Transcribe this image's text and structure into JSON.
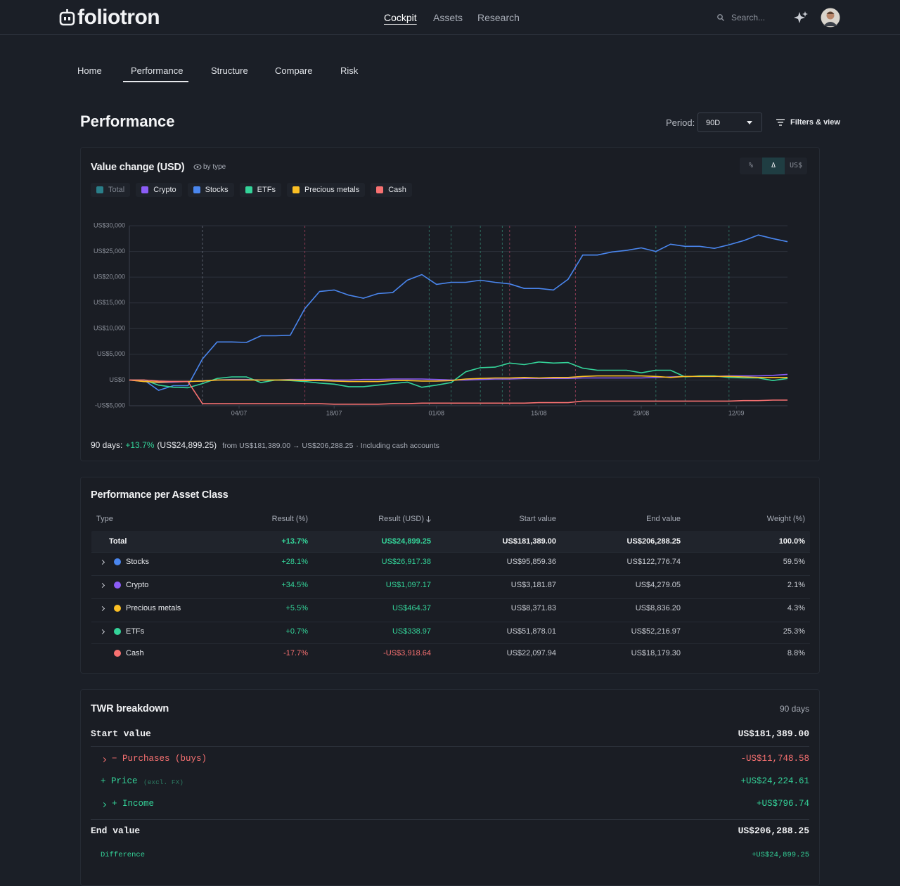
{
  "header": {
    "logo": "foliotron",
    "nav": [
      "Cockpit",
      "Assets",
      "Research"
    ],
    "active_nav": 0,
    "search": "Search..."
  },
  "tabs": {
    "items": [
      "Home",
      "Performance",
      "Structure",
      "Compare",
      "Risk"
    ],
    "active": 1
  },
  "page": {
    "title": "Performance",
    "period_label": "Period:",
    "period": "90D",
    "filters": "Filters & view"
  },
  "chart_data": {
    "type": "line",
    "title": "Value change (USD)",
    "subtitle": "by type",
    "toggles": [
      "%",
      "Δ",
      "US$"
    ],
    "active_toggle": 1,
    "inactive_legend": {
      "name": "Total",
      "color": "#2a7f8a"
    },
    "x": [
      0,
      2,
      4,
      6,
      8,
      10,
      12,
      14,
      16,
      18,
      20,
      22,
      24,
      26,
      28,
      30,
      32,
      34,
      36,
      38,
      40,
      42,
      44,
      46,
      48,
      50,
      52,
      54,
      56,
      58,
      60,
      62,
      64,
      66,
      68,
      70,
      72,
      74,
      76,
      78,
      80,
      82,
      84,
      86,
      88,
      90
    ],
    "xlim": [
      0,
      90
    ],
    "xticks": [
      {
        "value": 15,
        "label": "04/07"
      },
      {
        "value": 28,
        "label": "18/07"
      },
      {
        "value": 42,
        "label": "01/08"
      },
      {
        "value": 56,
        "label": "15/08"
      },
      {
        "value": 70,
        "label": "29/08"
      },
      {
        "value": 83,
        "label": "12/09"
      }
    ],
    "ylim": [
      -5000,
      30000
    ],
    "yticks": [
      {
        "value": -5000,
        "label": "-US$5,000"
      },
      {
        "value": 0,
        "label": "US$0"
      },
      {
        "value": 5000,
        "label": "US$5,000"
      },
      {
        "value": 10000,
        "label": "US$10,000"
      },
      {
        "value": 15000,
        "label": "US$15,000"
      },
      {
        "value": 20000,
        "label": "US$20,000"
      },
      {
        "value": 25000,
        "label": "US$25,000"
      },
      {
        "value": 30000,
        "label": "US$30,000"
      }
    ],
    "grid": true,
    "events": [
      {
        "x": 10,
        "color": "#5a606b"
      },
      {
        "x": 24,
        "color": "#8a3a52"
      },
      {
        "x": 41,
        "color": "#2d6b5e"
      },
      {
        "x": 44,
        "color": "#2d6b5e"
      },
      {
        "x": 48,
        "color": "#2d6b5e"
      },
      {
        "x": 51,
        "color": "#2d6b5e"
      },
      {
        "x": 52,
        "color": "#8a3a52"
      },
      {
        "x": 61,
        "color": "#8a3a52"
      },
      {
        "x": 72,
        "color": "#2d6b5e"
      },
      {
        "x": 76,
        "color": "#2d6b5e"
      },
      {
        "x": 82,
        "color": "#2d6b5e"
      }
    ],
    "series": [
      {
        "name": "Crypto",
        "color": "#8b5cf6",
        "values": [
          0,
          -300,
          -500,
          -400,
          -300,
          -200,
          0,
          100,
          100,
          0,
          0,
          100,
          100,
          100,
          0,
          0,
          100,
          100,
          200,
          200,
          200,
          100,
          0,
          0,
          100,
          200,
          200,
          300,
          300,
          300,
          300,
          400,
          400,
          400,
          400,
          400,
          500,
          600,
          700,
          700,
          700,
          800,
          800,
          800,
          900,
          1100
        ]
      },
      {
        "name": "Stocks",
        "color": "#4a86ee",
        "values": [
          0,
          0,
          -2000,
          -1100,
          -1100,
          4100,
          7400,
          7400,
          7300,
          8600,
          8600,
          8700,
          13900,
          17200,
          17500,
          16500,
          15900,
          16800,
          17000,
          19400,
          20500,
          18600,
          19000,
          19000,
          19400,
          19000,
          18700,
          17800,
          17800,
          17500,
          19600,
          24300,
          24300,
          24900,
          25200,
          25700,
          25000,
          26400,
          26000,
          26000,
          25600,
          26300,
          27100,
          28200,
          27500,
          26900
        ]
      },
      {
        "name": "ETFs",
        "color": "#34d399",
        "values": [
          0,
          0,
          -1000,
          -1400,
          -1500,
          -700,
          300,
          600,
          600,
          -500,
          0,
          -100,
          -300,
          -600,
          -800,
          -1300,
          -1300,
          -1000,
          -700,
          -400,
          -1400,
          -1000,
          -500,
          1600,
          2400,
          2500,
          3300,
          3000,
          3500,
          3300,
          3400,
          2300,
          1900,
          1900,
          1900,
          1400,
          1900,
          1900,
          600,
          800,
          800,
          500,
          400,
          400,
          -100,
          300
        ]
      },
      {
        "name": "Precious metals",
        "color": "#fbbf24",
        "values": [
          0,
          -300,
          -400,
          -300,
          -300,
          -200,
          0,
          0,
          0,
          0,
          0,
          0,
          -100,
          -100,
          -200,
          -300,
          -300,
          -300,
          -100,
          -100,
          -200,
          -200,
          -100,
          200,
          300,
          400,
          400,
          500,
          400,
          500,
          500,
          700,
          800,
          800,
          800,
          800,
          700,
          500,
          700,
          700,
          700,
          700,
          600,
          500,
          500,
          500
        ]
      },
      {
        "name": "Cash",
        "color": "#f87171",
        "values": [
          0,
          0,
          -200,
          -300,
          -300,
          -4600,
          -4600,
          -4600,
          -4600,
          -4600,
          -4600,
          -4600,
          -4600,
          -4600,
          -4700,
          -4700,
          -4700,
          -4700,
          -4600,
          -4600,
          -4500,
          -4500,
          -4500,
          -4500,
          -4500,
          -4500,
          -4500,
          -4500,
          -4400,
          -4400,
          -4400,
          -4100,
          -4100,
          -4100,
          -4100,
          -4100,
          -4100,
          -4100,
          -4100,
          -4100,
          -4100,
          -4100,
          -4000,
          -4000,
          -3900,
          -3900
        ]
      }
    ],
    "summary": {
      "label": "90 days:",
      "pct": "+13.7%",
      "abs": "(US$24,899.25)",
      "range": "from US$181,389.00 → US$206,288.25",
      "note": "· Including cash accounts"
    }
  },
  "table": {
    "title": "Performance per Asset Class",
    "columns": [
      "Type",
      "Result (%)",
      "Result (USD)",
      "Start value",
      "End value",
      "Weight (%)"
    ],
    "sort_column": 2,
    "total": {
      "type": "Total",
      "tone": "pos",
      "cells": [
        "+13.7%",
        "US$24,899.25",
        "US$181,389.00",
        "US$206,288.25",
        "100.0%"
      ]
    },
    "rows": [
      {
        "type": "Stocks",
        "color": "#4a86ee",
        "expandable": true,
        "tone": "pos",
        "cells": [
          "+28.1%",
          "US$26,917.38",
          "US$95,859.36",
          "US$122,776.74",
          "59.5%"
        ]
      },
      {
        "type": "Crypto",
        "color": "#8b5cf6",
        "expandable": true,
        "tone": "pos",
        "cells": [
          "+34.5%",
          "US$1,097.17",
          "US$3,181.87",
          "US$4,279.05",
          "2.1%"
        ]
      },
      {
        "type": "Precious metals",
        "color": "#fbbf24",
        "expandable": true,
        "tone": "pos",
        "cells": [
          "+5.5%",
          "US$464.37",
          "US$8,371.83",
          "US$8,836.20",
          "4.3%"
        ]
      },
      {
        "type": "ETFs",
        "color": "#34d399",
        "expandable": true,
        "tone": "pos",
        "cells": [
          "+0.7%",
          "US$338.97",
          "US$51,878.01",
          "US$52,216.97",
          "25.3%"
        ]
      },
      {
        "type": "Cash",
        "color": "#f87171",
        "expandable": false,
        "tone": "neg",
        "cells": [
          "-17.7%",
          "-US$3,918.64",
          "US$22,097.94",
          "US$18,179.30",
          "8.8%"
        ]
      }
    ]
  },
  "twr": {
    "title": "TWR breakdown",
    "period": "90 days",
    "start": {
      "label": "Start value",
      "value": "US$181,389.00"
    },
    "items": [
      {
        "label": "− Purchases (buys)",
        "value": "-US$11,748.58",
        "tone": "neg",
        "expandable": true
      },
      {
        "label": "+ Price",
        "note": "(excl. FX)",
        "value": "+US$24,224.61",
        "tone": "pos",
        "expandable": false
      },
      {
        "label": "+ Income",
        "value": "+US$796.74",
        "tone": "pos",
        "expandable": true
      }
    ],
    "end": {
      "label": "End value",
      "value": "US$206,288.25"
    },
    "difference": {
      "label": "Difference",
      "value": "+US$24,899.25"
    }
  }
}
